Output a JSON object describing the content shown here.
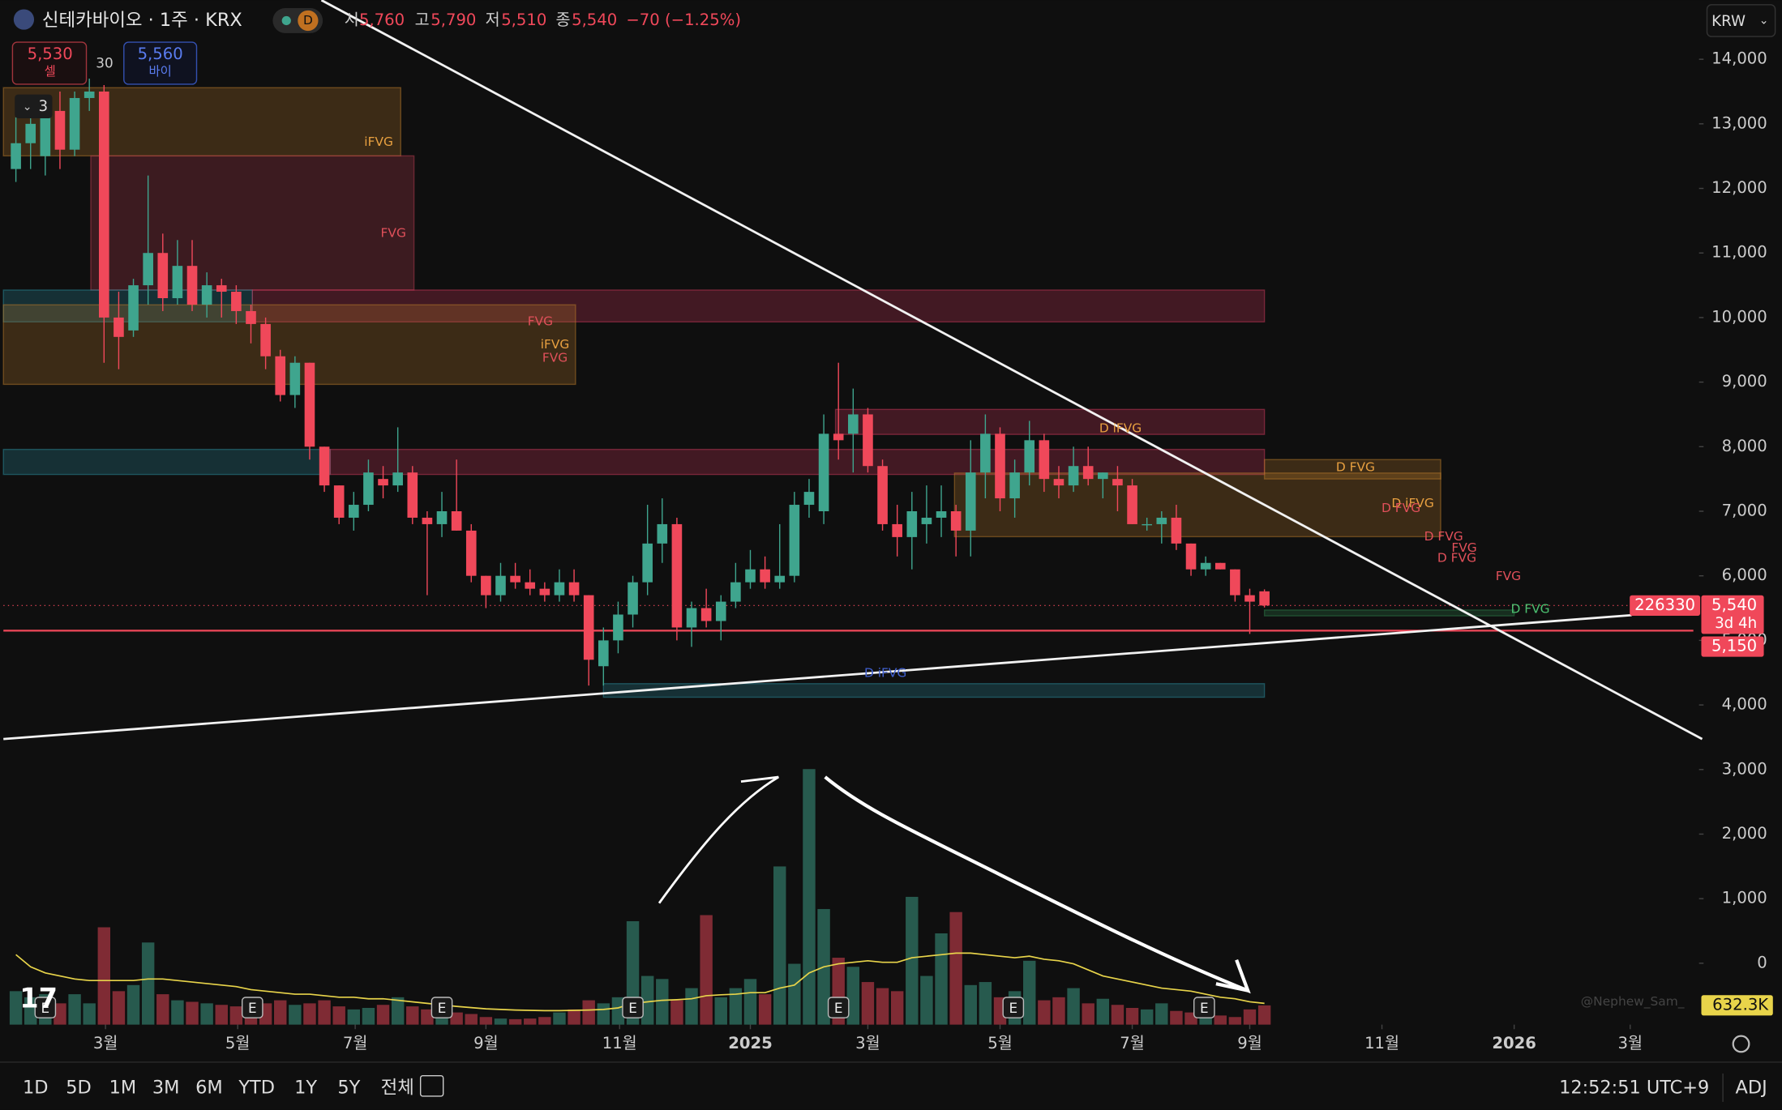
{
  "header": {
    "symbol": "신테카바이오 · 1주 · KRX",
    "interval_badge": "D",
    "open_label": "시",
    "open": "5,760",
    "high_label": "고",
    "high": "5,790",
    "low_label": "저",
    "low": "5,510",
    "close_label": "종",
    "close": "5,540",
    "change": "−70 (−1.25%)"
  },
  "trade": {
    "sell_price": "5,530",
    "sell": "셀",
    "spread": "30",
    "buy_price": "5,560",
    "buy": "바이",
    "collapse": "3",
    "currency": "KRW"
  },
  "chart_data": {
    "type": "candlestick",
    "candles": [
      [
        12300,
        13100,
        12100,
        12700
      ],
      [
        12700,
        13200,
        12300,
        13000
      ],
      [
        12500,
        13300,
        12200,
        13200
      ],
      [
        13200,
        13500,
        12300,
        12600
      ],
      [
        12600,
        13500,
        12500,
        13400
      ],
      [
        13400,
        13700,
        13200,
        13500
      ],
      [
        13500,
        13600,
        9300,
        10000
      ],
      [
        10000,
        10400,
        9200,
        9700
      ],
      [
        9800,
        10600,
        9700,
        10500
      ],
      [
        10500,
        12200,
        10200,
        11000
      ],
      [
        11000,
        11300,
        10100,
        10300
      ],
      [
        10300,
        11200,
        10200,
        10800
      ],
      [
        10800,
        11200,
        10100,
        10200
      ],
      [
        10200,
        10700,
        10000,
        10500
      ],
      [
        10500,
        10600,
        10000,
        10400
      ],
      [
        10400,
        10500,
        9900,
        10100
      ],
      [
        10100,
        10200,
        9600,
        9900
      ],
      [
        9900,
        10000,
        9200,
        9400
      ],
      [
        9400,
        9500,
        8700,
        8800
      ],
      [
        8800,
        9400,
        8600,
        9300
      ],
      [
        9300,
        9300,
        7800,
        8000
      ],
      [
        8000,
        8000,
        7300,
        7400
      ],
      [
        7400,
        7400,
        6800,
        6900
      ],
      [
        6900,
        7300,
        6700,
        7100
      ],
      [
        7100,
        7800,
        7000,
        7600
      ],
      [
        7500,
        7700,
        7200,
        7400
      ],
      [
        7400,
        8300,
        7300,
        7600
      ],
      [
        7600,
        7700,
        6800,
        6900
      ],
      [
        6900,
        7000,
        5700,
        6800
      ],
      [
        6800,
        7300,
        6600,
        7000
      ],
      [
        7000,
        7800,
        6700,
        6700
      ],
      [
        6700,
        6800,
        5900,
        6000
      ],
      [
        6000,
        6000,
        5500,
        5700
      ],
      [
        5700,
        6200,
        5600,
        6000
      ],
      [
        6000,
        6200,
        5800,
        5900
      ],
      [
        5900,
        6100,
        5700,
        5800
      ],
      [
        5800,
        5900,
        5600,
        5700
      ],
      [
        5700,
        6100,
        5600,
        5900
      ],
      [
        5900,
        6100,
        5600,
        5700
      ],
      [
        5700,
        5700,
        4300,
        4700
      ],
      [
        4600,
        5200,
        4300,
        5000
      ],
      [
        5000,
        5600,
        4800,
        5400
      ],
      [
        5400,
        6000,
        5200,
        5900
      ],
      [
        5900,
        7100,
        5700,
        6500
      ],
      [
        6500,
        7200,
        6200,
        6800
      ],
      [
        6800,
        6900,
        5000,
        5200
      ],
      [
        5200,
        5600,
        4900,
        5500
      ],
      [
        5500,
        5800,
        5200,
        5300
      ],
      [
        5300,
        5700,
        5000,
        5600
      ],
      [
        5600,
        6200,
        5500,
        5900
      ],
      [
        5900,
        6400,
        5800,
        6100
      ],
      [
        6100,
        6300,
        5800,
        5900
      ],
      [
        5900,
        6800,
        5800,
        6000
      ],
      [
        6000,
        7300,
        5900,
        7100
      ],
      [
        7100,
        7500,
        6900,
        7300
      ],
      [
        7000,
        8500,
        6800,
        8200
      ],
      [
        8200,
        9300,
        7800,
        8100
      ],
      [
        8200,
        8900,
        7600,
        8500
      ],
      [
        8500,
        8600,
        7600,
        7700
      ],
      [
        7700,
        7800,
        6700,
        6800
      ],
      [
        6800,
        7100,
        6300,
        6600
      ],
      [
        6600,
        7300,
        6100,
        7000
      ],
      [
        6800,
        7400,
        6500,
        6900
      ],
      [
        6900,
        7400,
        6600,
        7000
      ],
      [
        7000,
        7100,
        6300,
        6700
      ],
      [
        6700,
        8100,
        6300,
        7600
      ],
      [
        7600,
        8500,
        7200,
        8200
      ],
      [
        8200,
        8300,
        7000,
        7200
      ],
      [
        7200,
        7800,
        6900,
        7600
      ],
      [
        7600,
        8400,
        7400,
        8100
      ],
      [
        8100,
        8200,
        7300,
        7500
      ],
      [
        7500,
        7700,
        7200,
        7400
      ],
      [
        7400,
        8000,
        7300,
        7700
      ],
      [
        7700,
        8000,
        7400,
        7500
      ],
      [
        7500,
        7600,
        7200,
        7600
      ],
      [
        7500,
        7700,
        7000,
        7400
      ],
      [
        7400,
        7500,
        6800,
        6800
      ],
      [
        6800,
        6900,
        6700,
        6800
      ],
      [
        6800,
        7000,
        6500,
        6900
      ],
      [
        6900,
        7100,
        6400,
        6500
      ],
      [
        6500,
        6500,
        6000,
        6100
      ],
      [
        6100,
        6300,
        6000,
        6200
      ],
      [
        6200,
        6200,
        6100,
        6100
      ],
      [
        6100,
        6100,
        5600,
        5700
      ],
      [
        5700,
        5800,
        5100,
        5600
      ],
      [
        5760,
        5790,
        5510,
        5540
      ]
    ],
    "up_color": "#3fa58e",
    "down_color": "#f0485a",
    "volume": [
      1100000,
      900000,
      1000000,
      700000,
      1000000,
      700000,
      3200000,
      1100000,
      1300000,
      2700000,
      1000000,
      800000,
      750000,
      700000,
      650000,
      600000,
      500000,
      700000,
      800000,
      650000,
      700000,
      800000,
      600000,
      500000,
      550000,
      650000,
      900000,
      600000,
      500000,
      450000,
      400000,
      350000,
      250000,
      200000,
      180000,
      200000,
      250000,
      400000,
      500000,
      800000,
      700000,
      900000,
      3400000,
      1600000,
      1500000,
      800000,
      1200000,
      3600000,
      900000,
      1200000,
      1500000,
      1000000,
      5200000,
      2000000,
      8400000,
      3800000,
      2200000,
      1900000,
      1400000,
      1200000,
      1100000,
      4200000,
      1600000,
      3000000,
      3700000,
      1300000,
      1400000,
      900000,
      1100000,
      2100000,
      800000,
      900000,
      1200000,
      700000,
      850000,
      650000,
      550000,
      500000,
      700000,
      450000,
      400000,
      350000,
      300000,
      250000,
      500000,
      632300
    ],
    "volume_ma": [
      2300000,
      1900000,
      1700000,
      1600000,
      1500000,
      1450000,
      1450000,
      1450000,
      1450000,
      1500000,
      1500000,
      1450000,
      1400000,
      1350000,
      1300000,
      1250000,
      1150000,
      1100000,
      1050000,
      1000000,
      1000000,
      950000,
      900000,
      900000,
      850000,
      850000,
      800000,
      750000,
      700000,
      650000,
      600000,
      560000,
      520000,
      500000,
      480000,
      470000,
      460000,
      460000,
      470000,
      480000,
      500000,
      550000,
      700000,
      750000,
      800000,
      820000,
      850000,
      950000,
      980000,
      1000000,
      1050000,
      1050000,
      1200000,
      1300000,
      1700000,
      1900000,
      2000000,
      2050000,
      2100000,
      2050000,
      2050000,
      2200000,
      2250000,
      2300000,
      2350000,
      2350000,
      2300000,
      2250000,
      2200000,
      2250000,
      2150000,
      2100000,
      2000000,
      1800000,
      1600000,
      1500000,
      1400000,
      1300000,
      1200000,
      1150000,
      1100000,
      1000000,
      900000,
      850000,
      750000,
      700000
    ],
    "volume_ma_color": "#e8d44a",
    "volume_last_label": "632.3K",
    "volume_ylim": [
      0,
      8400000
    ],
    "xlim": [
      -0.85,
      114.2
    ],
    "xticks": [
      {
        "value": 6.1,
        "label": "3월"
      },
      {
        "value": 15.1,
        "label": "5월"
      },
      {
        "value": 23.1,
        "label": "7월"
      },
      {
        "value": 32,
        "label": "9월"
      },
      {
        "value": 41.1,
        "label": "11월"
      },
      {
        "value": 50,
        "label": "2025"
      },
      {
        "value": 58,
        "label": "3월"
      },
      {
        "value": 67,
        "label": "5월"
      },
      {
        "value": 76,
        "label": "7월"
      },
      {
        "value": 84,
        "label": "9월"
      },
      {
        "value": 93,
        "label": "11월"
      },
      {
        "value": 102,
        "label": "2026"
      },
      {
        "value": 109.9,
        "label": "3월"
      }
    ],
    "ylim": [
      -951,
      14915
    ],
    "yticks": [
      0,
      {
        "value": 1000,
        "label": "1,000"
      },
      {
        "value": 2000,
        "label": "2,000"
      },
      {
        "value": 3000,
        "label": "3,000"
      },
      {
        "value": 4000,
        "label": "4,000"
      },
      {
        "value": 5000,
        "label": "5,000"
      },
      {
        "value": 6000,
        "label": "6,000"
      },
      {
        "value": 7000,
        "label": "7,000"
      },
      {
        "value": 8000,
        "label": "8,000"
      },
      {
        "value": 9000,
        "label": "9,000"
      },
      {
        "value": 10000,
        "label": "10,000"
      },
      {
        "value": 11000,
        "label": "11,000"
      },
      {
        "value": 12000,
        "label": "12,000"
      },
      {
        "value": 13000,
        "label": "13,000"
      },
      {
        "value": 14000,
        "label": "14,000"
      }
    ],
    "zones": [
      {
        "x": [
          -0.85,
          26.2
        ],
        "y": [
          12504,
          13560
        ],
        "color": "#b4782a"
      },
      {
        "x": [
          5.1,
          27.1
        ],
        "y": [
          10426,
          12504
        ],
        "color": "#b43c50"
      },
      {
        "x": [
          -0.85,
          16.1
        ],
        "y": [
          9933,
          10426
        ],
        "color": "#2a8a9a"
      },
      {
        "x": [
          16.1,
          85
        ],
        "y": [
          9933,
          10426
        ],
        "color": "#c8375a"
      },
      {
        "x": [
          -0.85,
          38.1
        ],
        "y": [
          8965,
          10197
        ],
        "color": "#b4782a"
      },
      {
        "x": [
          -0.85,
          21.4
        ],
        "y": [
          7570,
          7958
        ],
        "color": "#2a8a9a"
      },
      {
        "x": [
          21.4,
          85
        ],
        "y": [
          7570,
          7958
        ],
        "color": "#c8375a"
      },
      {
        "x": [
          55.8,
          85
        ],
        "y": [
          8190,
          8577
        ],
        "color": "#c8375a"
      },
      {
        "x": [
          63.9,
          97
        ],
        "y": [
          6606,
          7592
        ],
        "color": "#b4782a"
      },
      {
        "x": [
          85,
          97
        ],
        "y": [
          7500,
          7800
        ],
        "color": "#b4782a"
      },
      {
        "x": [
          85,
          102
        ],
        "y": [
          5380,
          5470
        ],
        "color": "#2e7d4a"
      },
      {
        "x": [
          40,
          85
        ],
        "y": [
          4120,
          4330
        ],
        "color": "#2a8a9a"
      }
    ],
    "zone_labels": [
      {
        "text": "iFVG",
        "x": 24.7,
        "y": 12715,
        "color": "#e8a040"
      },
      {
        "text": "FVG",
        "x": 25.7,
        "y": 11306,
        "color": "#e0505a"
      },
      {
        "text": "FVG",
        "x": 35.7,
        "y": 9933,
        "color": "#e0505a"
      },
      {
        "text": "iFVG",
        "x": 36.7,
        "y": 9581,
        "color": "#e8a040"
      },
      {
        "text": "FVG",
        "x": 36.7,
        "y": 9370,
        "color": "#e0505a"
      },
      {
        "text": "D iFVG",
        "x": 75.2,
        "y": 8278,
        "color": "#e8a040"
      },
      {
        "text": "D FVG",
        "x": 91.2,
        "y": 7680,
        "color": "#e8a040"
      },
      {
        "text": "D iFVG",
        "x": 95.1,
        "y": 7116,
        "color": "#e8a040"
      },
      {
        "text": "D FVG",
        "x": 94.3,
        "y": 7046,
        "color": "#e0505a"
      },
      {
        "text": "D FVG",
        "x": 97.2,
        "y": 6606,
        "color": "#e0505a"
      },
      {
        "text": "FVG",
        "x": 98.6,
        "y": 6430,
        "color": "#e0505a"
      },
      {
        "text": "D FVG",
        "x": 98.1,
        "y": 6271,
        "color": "#e0505a"
      },
      {
        "text": "FVG",
        "x": 101.6,
        "y": 5989,
        "color": "#e0505a"
      },
      {
        "text": "D FVG",
        "x": 103.1,
        "y": 5479,
        "color": "#4cc070"
      },
      {
        "text": "D iFVG",
        "x": 59.2,
        "y": 4493,
        "color": "#4060d0"
      }
    ],
    "trendlines": [
      {
        "x": [
          20.8,
          114.8
        ],
        "y": [
          14915,
          3472
        ]
      },
      {
        "x": [
          -0.85,
          110
        ],
        "y": [
          3472,
          5391
        ]
      }
    ],
    "support": {
      "value": 5150,
      "label": "5,150",
      "color": "#f0485a"
    },
    "last_price": {
      "value": 5540,
      "label": "5,540",
      "countdown": "3d 4h",
      "indicator": "226330"
    },
    "events": [
      {
        "x": 2,
        "label": "E"
      },
      {
        "x": 16.1,
        "label": "E"
      },
      {
        "x": 29,
        "label": "E"
      },
      {
        "x": 42,
        "label": "E"
      },
      {
        "x": 56,
        "label": "E"
      },
      {
        "x": 67.9,
        "label": "E"
      },
      {
        "x": 80.9,
        "label": "E"
      }
    ],
    "watermark": "@Nephew_Sam_"
  },
  "footer": {
    "ranges": [
      "1D",
      "5D",
      "1M",
      "3M",
      "6M",
      "YTD",
      "1Y",
      "5Y",
      "전체"
    ],
    "time": "12:52:51 UTC+9",
    "adj": "ADJ"
  }
}
